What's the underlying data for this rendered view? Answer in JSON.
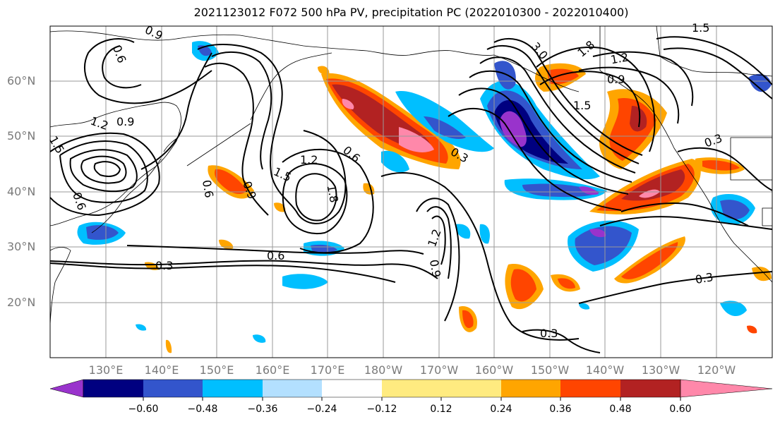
{
  "title": "2021123012 F072 500 hPa PV, precipitation PC (2022010300 - 2022010400)",
  "lat_labels": [
    "60°N",
    "50°N",
    "40°N",
    "30°N",
    "20°N"
  ],
  "lon_labels": [
    "130°E",
    "140°E",
    "150°E",
    "160°E",
    "170°E",
    "180°W",
    "170°W",
    "160°W",
    "150°W",
    "140°W",
    "130°W",
    "120°W"
  ],
  "colorbar": {
    "colors": [
      "#9933cc",
      "#000080",
      "#3355cc",
      "#00bfff",
      "#b3e0ff",
      "#ffffff",
      "#ffeb80",
      "#ffa500",
      "#ff4500",
      "#b22222",
      "#ff88aa"
    ],
    "tick_labels": [
      "−0.60",
      "−0.48",
      "−0.36",
      "−0.24",
      "−0.12",
      "0.12",
      "0.24",
      "0.36",
      "0.48",
      "0.60"
    ]
  },
  "contour_labels": [
    "0.9",
    "0.6",
    "1.2",
    "0.9",
    "1.5",
    "0.6",
    "0.9",
    "1.5",
    "1.2",
    "0.6",
    "1.8",
    "1.2",
    "0.6",
    "0.9",
    "0.3",
    "0.6",
    "3.0",
    "1.8",
    "1.2",
    "0.9",
    "1.5",
    "0.3",
    "0.3",
    "0.3",
    "0.3",
    "1.5"
  ],
  "colors": {
    "contour": "#000000",
    "coast": "#000000",
    "grid": "#999999",
    "axis_label": "#7a7a7a"
  }
}
